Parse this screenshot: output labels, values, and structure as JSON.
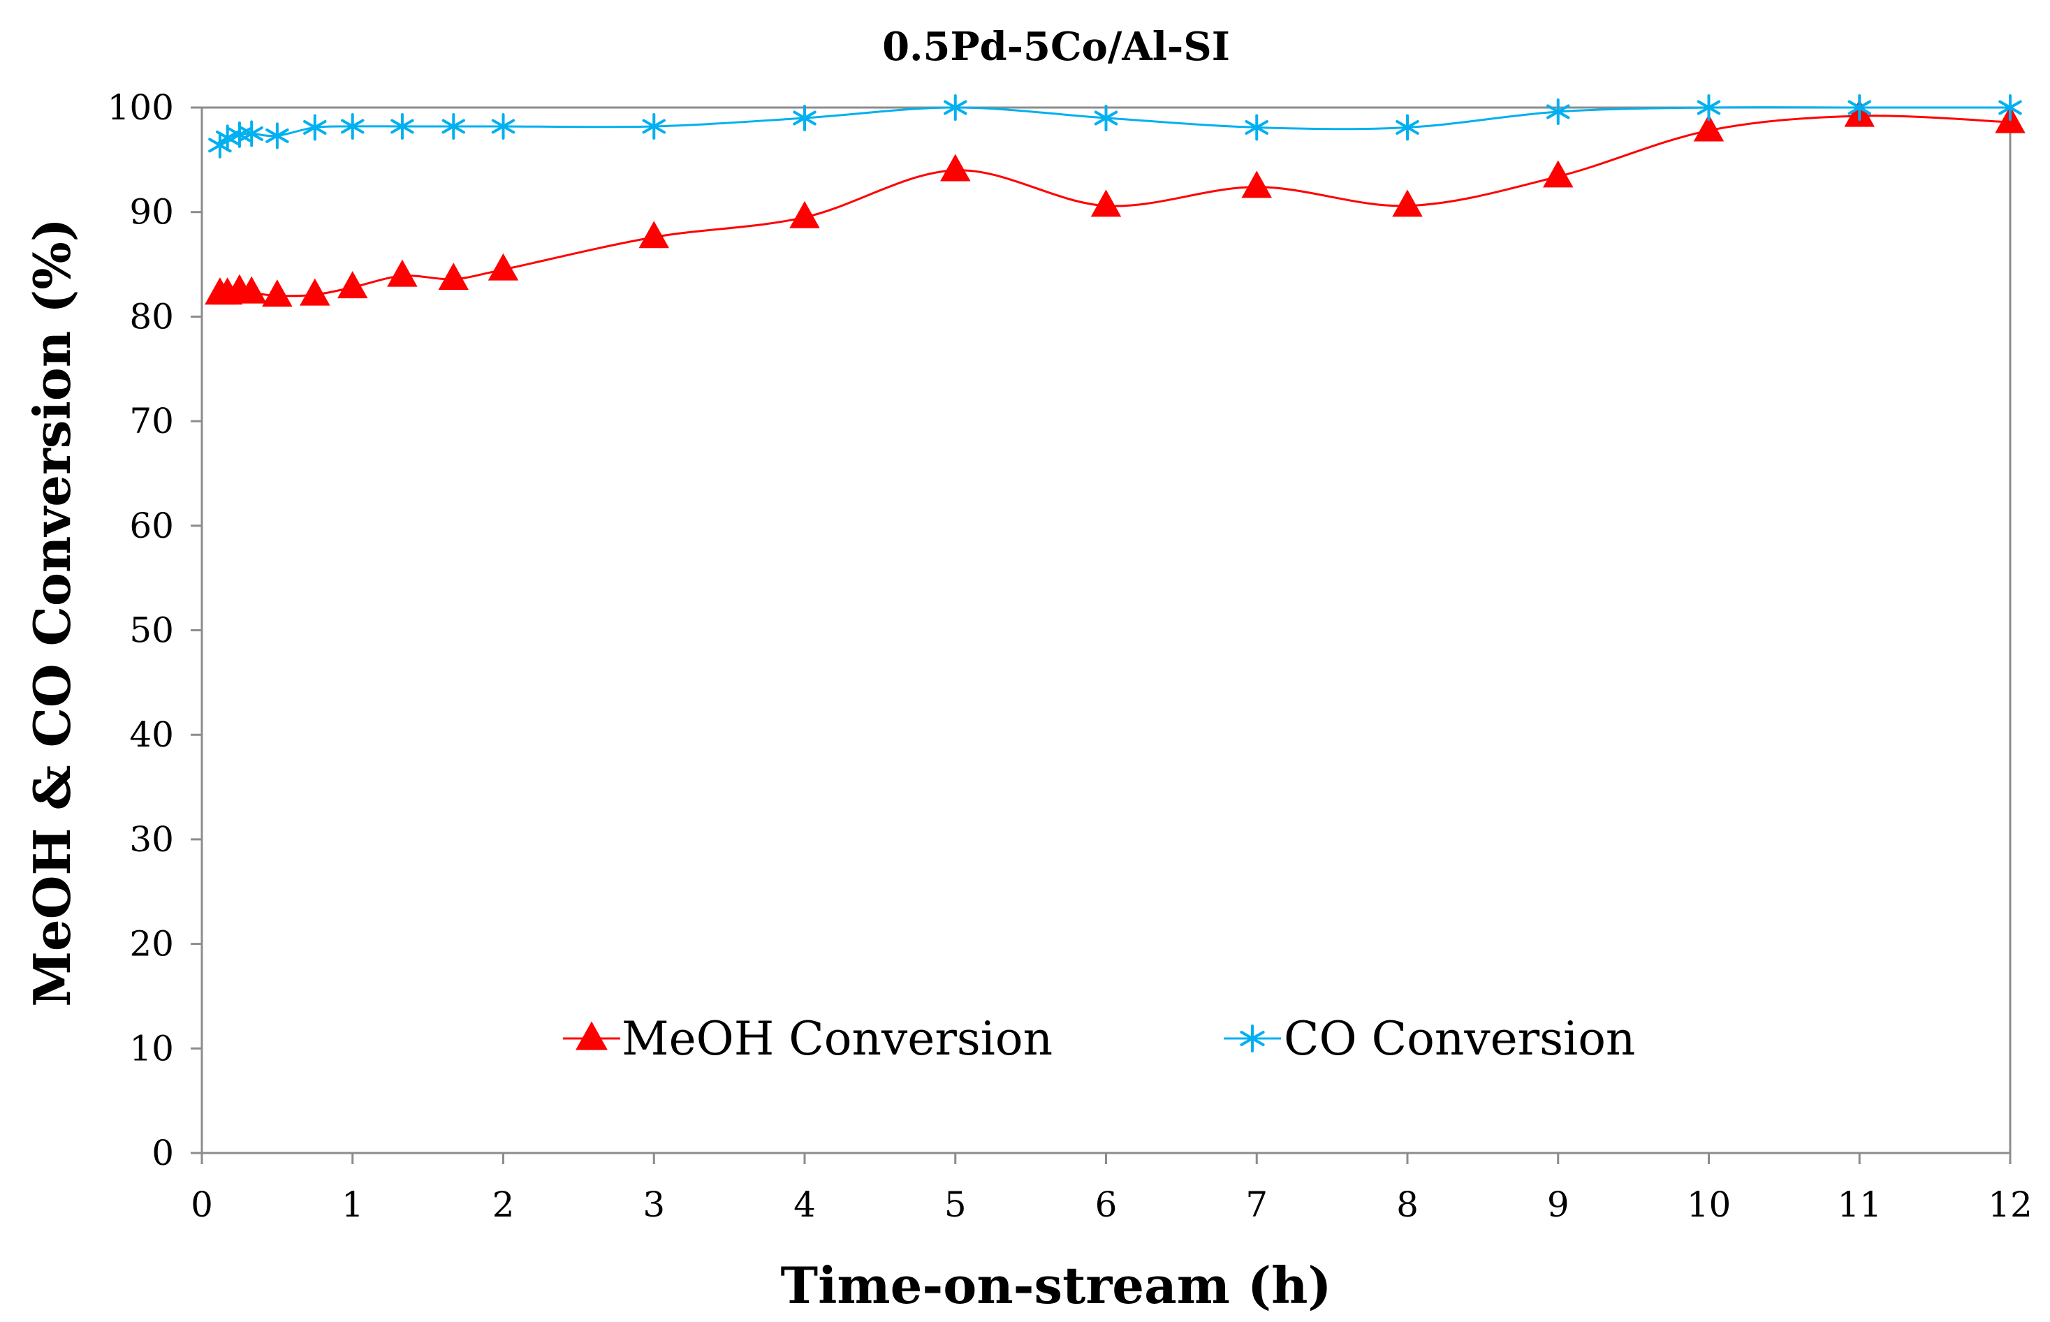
{
  "chart_data": {
    "type": "line",
    "title": "0.5Pd-5Co/Al-SI",
    "xlabel": "Time-on-stream (h)",
    "ylabel": "MeOH & CO Conversion (%)",
    "xlim": [
      0,
      12
    ],
    "ylim": [
      0,
      100
    ],
    "xticks": [
      "0",
      "1",
      "2",
      "3",
      "4",
      "5",
      "6",
      "7",
      "8",
      "9",
      "10",
      "11",
      "12"
    ],
    "yticks": [
      "0",
      "10",
      "20",
      "30",
      "40",
      "50",
      "60",
      "70",
      "80",
      "90",
      "100"
    ],
    "grid": false,
    "legend_position": "bottom-center",
    "series": [
      {
        "name": "MeOH Conversion",
        "color": "#ff0000",
        "marker": "triangle",
        "x": [
          0.12,
          0.17,
          0.25,
          0.33,
          0.5,
          0.75,
          1,
          1.33,
          1.67,
          2,
          3,
          4,
          5,
          6,
          7,
          8,
          9,
          10,
          11,
          12
        ],
        "y": [
          82.2,
          82.2,
          82.5,
          82.3,
          82.0,
          82.1,
          82.8,
          83.9,
          83.6,
          84.5,
          87.6,
          89.5,
          94.0,
          90.6,
          92.4,
          90.6,
          93.4,
          97.8,
          99.2,
          98.6
        ]
      },
      {
        "name": "CO Conversion",
        "color": "#00b0f0",
        "marker": "star",
        "x": [
          0.12,
          0.17,
          0.25,
          0.33,
          0.5,
          0.75,
          1,
          1.33,
          1.67,
          2,
          3,
          4,
          5,
          6,
          7,
          8,
          9,
          10,
          11,
          12
        ],
        "y": [
          96.4,
          97.1,
          97.4,
          97.5,
          97.3,
          98.1,
          98.2,
          98.2,
          98.2,
          98.2,
          98.2,
          99.0,
          100.0,
          99.0,
          98.1,
          98.1,
          99.6,
          100.0,
          100.0,
          100.0
        ]
      }
    ]
  }
}
